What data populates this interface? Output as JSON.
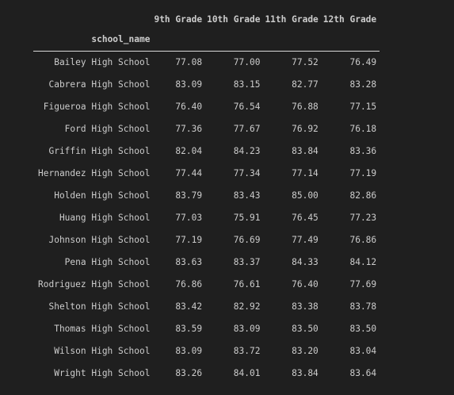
{
  "table": {
    "index_name": "school_name",
    "columns": [
      "9th Grade",
      "10th Grade",
      "11th Grade",
      "12th Grade"
    ],
    "rows": [
      {
        "school": "Bailey High School",
        "values": [
          "77.08",
          "77.00",
          "77.52",
          "76.49"
        ]
      },
      {
        "school": "Cabrera High School",
        "values": [
          "83.09",
          "83.15",
          "82.77",
          "83.28"
        ]
      },
      {
        "school": "Figueroa High School",
        "values": [
          "76.40",
          "76.54",
          "76.88",
          "77.15"
        ]
      },
      {
        "school": "Ford High School",
        "values": [
          "77.36",
          "77.67",
          "76.92",
          "76.18"
        ]
      },
      {
        "school": "Griffin High School",
        "values": [
          "82.04",
          "84.23",
          "83.84",
          "83.36"
        ]
      },
      {
        "school": "Hernandez High School",
        "values": [
          "77.44",
          "77.34",
          "77.14",
          "77.19"
        ]
      },
      {
        "school": "Holden High School",
        "values": [
          "83.79",
          "83.43",
          "85.00",
          "82.86"
        ]
      },
      {
        "school": "Huang High School",
        "values": [
          "77.03",
          "75.91",
          "76.45",
          "77.23"
        ]
      },
      {
        "school": "Johnson High School",
        "values": [
          "77.19",
          "76.69",
          "77.49",
          "76.86"
        ]
      },
      {
        "school": "Pena High School",
        "values": [
          "83.63",
          "83.37",
          "84.33",
          "84.12"
        ]
      },
      {
        "school": "Rodriguez High School",
        "values": [
          "76.86",
          "76.61",
          "76.40",
          "77.69"
        ]
      },
      {
        "school": "Shelton High School",
        "values": [
          "83.42",
          "82.92",
          "83.38",
          "83.78"
        ]
      },
      {
        "school": "Thomas High School",
        "values": [
          "83.59",
          "83.09",
          "83.50",
          "83.50"
        ]
      },
      {
        "school": "Wilson High School",
        "values": [
          "83.09",
          "83.72",
          "83.20",
          "83.04"
        ]
      },
      {
        "school": "Wright High School",
        "values": [
          "83.26",
          "84.01",
          "83.84",
          "83.64"
        ]
      }
    ]
  }
}
